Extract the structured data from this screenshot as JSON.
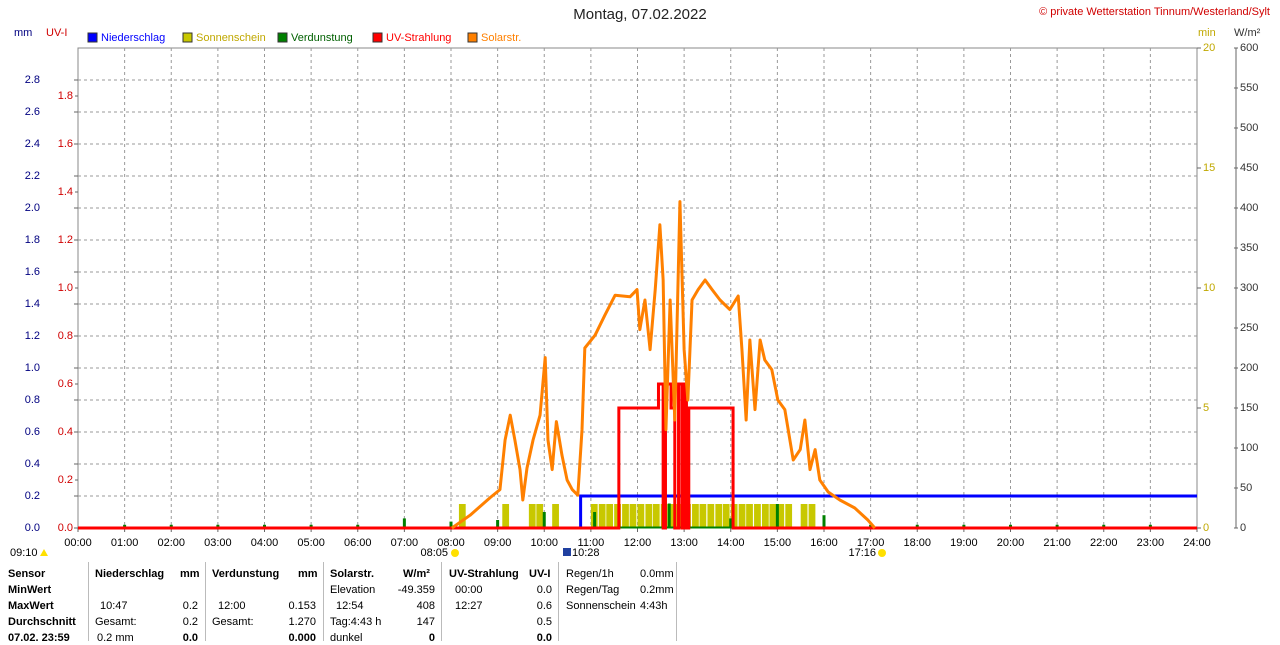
{
  "chart_data": {
    "type": "line",
    "title": "Montag, 07.02.2022",
    "credit": "© private Wetterstation Tinnum/Westerland/Sylt",
    "grid": true,
    "xlim": [
      0,
      24
    ],
    "xticks": [
      {
        "value": 0,
        "label": "00:00"
      },
      {
        "value": 1,
        "label": "01:00"
      },
      {
        "value": 2,
        "label": "02:00"
      },
      {
        "value": 3,
        "label": "03:00"
      },
      {
        "value": 4,
        "label": "04:00"
      },
      {
        "value": 5,
        "label": "05:00"
      },
      {
        "value": 6,
        "label": "06:00"
      },
      {
        "value": 7,
        "label": "07:00"
      },
      {
        "value": 8,
        "label": "08:00"
      },
      {
        "value": 9,
        "label": "09:00"
      },
      {
        "value": 10,
        "label": "10:00"
      },
      {
        "value": 11,
        "label": "11:00"
      },
      {
        "value": 12,
        "label": "12:00"
      },
      {
        "value": 13,
        "label": "13:00"
      },
      {
        "value": 14,
        "label": "14:00"
      },
      {
        "value": 15,
        "label": "15:00"
      },
      {
        "value": 16,
        "label": "16:00"
      },
      {
        "value": 17,
        "label": "17:00"
      },
      {
        "value": 18,
        "label": "18:00"
      },
      {
        "value": 19,
        "label": "19:00"
      },
      {
        "value": 20,
        "label": "20:00"
      },
      {
        "value": 21,
        "label": "21:00"
      },
      {
        "value": 22,
        "label": "22:00"
      },
      {
        "value": 23,
        "label": "23:00"
      },
      {
        "value": 24,
        "label": "24:00"
      }
    ],
    "ylabel": "mm",
    "ylim": [
      0,
      3
    ],
    "yticks": [
      {
        "value": 0,
        "label": "0.0"
      },
      0.2,
      0.4,
      0.6,
      0.8,
      {
        "value": 1,
        "label": "1.0"
      },
      1.2,
      1.4,
      1.6,
      1.8,
      {
        "value": 2,
        "label": "2.0"
      },
      2.2,
      2.4,
      2.6,
      2.8
    ],
    "y2label": "UV-I",
    "y2lim": [
      0,
      2
    ],
    "y2ticks": [
      {
        "value": 0,
        "label": "0.0"
      },
      0.2,
      0.4,
      0.6,
      0.8,
      {
        "value": 1,
        "label": "1.0"
      },
      1.2,
      1.4,
      1.6,
      1.8
    ],
    "y3label": "min",
    "y3lim": [
      0,
      20
    ],
    "y3ticks": [
      0,
      5,
      10,
      15,
      20
    ],
    "y4label": "W/m²",
    "y4lim": [
      0,
      600
    ],
    "y4ticks": [
      0,
      50,
      100,
      150,
      200,
      250,
      300,
      350,
      400,
      450,
      500,
      550,
      600
    ],
    "series": [
      {
        "name": "Niederschlag",
        "color": "#0000ff",
        "axis": "y",
        "style": "step",
        "x": [
          0,
          10.78,
          24
        ],
        "values": [
          0,
          0.2,
          0.2
        ]
      },
      {
        "name": "Sonnenschein",
        "color": "#c8c800",
        "axis": "y3",
        "style": "bar",
        "x": [
          8.17,
          9.1,
          9.67,
          9.83,
          10.17,
          11.0,
          11.17,
          11.33,
          11.5,
          11.67,
          11.83,
          12.0,
          12.17,
          12.33,
          12.5,
          12.67,
          12.83,
          13.0,
          13.17,
          13.33,
          13.5,
          13.67,
          13.83,
          14.0,
          14.17,
          14.33,
          14.5,
          14.67,
          14.83,
          15.0,
          15.17,
          15.5,
          15.67
        ],
        "values": [
          1,
          1,
          1,
          1,
          1,
          1,
          1,
          1,
          1,
          1,
          1,
          1,
          1,
          1,
          1,
          1,
          1,
          1,
          1,
          1,
          1,
          1,
          1,
          1,
          1,
          1,
          1,
          1,
          1,
          1,
          1,
          1,
          1
        ]
      },
      {
        "name": "Verdunstung",
        "color": "#008000",
        "axis": "y",
        "style": "spike",
        "x": [
          1,
          2,
          3,
          4,
          5,
          6,
          7,
          8,
          9,
          10,
          11.08,
          12.68,
          13.05,
          14.0,
          15.0,
          16.0,
          17,
          18,
          19,
          20,
          21,
          22,
          23
        ],
        "values": [
          0.02,
          0.02,
          0.02,
          0.02,
          0.02,
          0.02,
          0.06,
          0.04,
          0.05,
          0.1,
          0.1,
          0.153,
          0.15,
          0.06,
          0.15,
          0.08,
          0.02,
          0.02,
          0.02,
          0.02,
          0.02,
          0.02,
          0.02
        ]
      },
      {
        "name": "UV-Strahlung",
        "color": "#ff0000",
        "axis": "y2",
        "style": "step",
        "x": [
          0,
          11.6,
          12.45,
          12.55,
          12.6,
          12.72,
          12.8,
          12.88,
          12.95,
          13.0,
          13.05,
          13.1,
          14.05,
          24
        ],
        "values": [
          0,
          0.5,
          0.6,
          0,
          0.6,
          0.5,
          0,
          0.6,
          0,
          0.6,
          0,
          0.5,
          0,
          0
        ]
      },
      {
        "name": "Solarstr.",
        "color": "#ff8000",
        "axis": "y4",
        "style": "line",
        "x": [
          8.02,
          8.41,
          8.84,
          9.05,
          9.16,
          9.27,
          9.37,
          9.48,
          9.54,
          9.63,
          9.76,
          9.91,
          10.02,
          10.08,
          10.17,
          10.26,
          10.38,
          10.49,
          10.6,
          10.72,
          10.81,
          10.87,
          11.09,
          11.3,
          11.52,
          11.84,
          11.99,
          12.05,
          12.16,
          12.27,
          12.38,
          12.48,
          12.55,
          12.61,
          12.7,
          12.8,
          12.91,
          13.0,
          13.08,
          13.17,
          13.3,
          13.45,
          13.6,
          13.77,
          13.98,
          14.16,
          14.24,
          14.33,
          14.41,
          14.52,
          14.63,
          14.73,
          14.88,
          15.01,
          15.16,
          15.34,
          15.49,
          15.59,
          15.7,
          15.81,
          15.91,
          16.09,
          16.34,
          16.66,
          16.94,
          17.09
        ],
        "values": [
          0,
          16,
          38,
          48,
          110,
          141,
          110,
          73,
          35,
          75,
          110,
          141,
          213,
          110,
          73,
          133,
          91,
          60,
          48,
          41,
          123,
          225,
          241,
          266,
          291,
          289,
          298,
          248,
          285,
          223,
          298,
          379,
          310,
          123,
          285,
          135,
          408,
          223,
          160,
          285,
          298,
          310,
          298,
          285,
          273,
          290,
          223,
          135,
          235,
          148,
          235,
          210,
          198,
          160,
          148,
          85,
          98,
          135,
          73,
          98,
          60,
          45,
          35,
          25,
          10,
          0
        ]
      }
    ],
    "annotations": {
      "start": "09:10",
      "sunrise": "08:05",
      "marker": "10:28",
      "sunset": "17:16"
    }
  },
  "stats": {
    "row_labels": [
      "Sensor",
      "MinWert",
      "MaxWert",
      "Durchschnitt",
      "07.02. 23:59"
    ],
    "niederschlag": {
      "title": "Niederschlag",
      "unit": "mm",
      "max_time": "10:47",
      "max": "0.2",
      "total_label": "Gesamt:",
      "total": "0.2",
      "last_label": "0.2 mm",
      "last": "0.0"
    },
    "verdunstung": {
      "title": "Verdunstung",
      "unit": "mm",
      "max_time": "12:00",
      "max": "0.153",
      "total_label": "Gesamt:",
      "total": "1.270",
      "last": "0.000"
    },
    "solar": {
      "title": "Solarstr.",
      "unit": "W/m²",
      "min_label": "Elevation",
      "min": "-49.359",
      "max_time": "12:54",
      "max": "408",
      "avg_label": "Tag:4:43 h",
      "avg": "147",
      "last_label": "dunkel",
      "last": "0"
    },
    "uv": {
      "title": "UV-Strahlung",
      "unit": "UV-I",
      "min_time": "00:00",
      "min": "0.0",
      "max_time": "12:27",
      "max": "0.6",
      "avg": "0.5",
      "last": "0.0"
    },
    "summary": [
      {
        "label": "Regen/1h",
        "value": "0.0mm"
      },
      {
        "label": "Regen/Tag",
        "value": "0.2mm"
      },
      {
        "label": "Sonnenschein",
        "value": "4:43h"
      }
    ]
  }
}
